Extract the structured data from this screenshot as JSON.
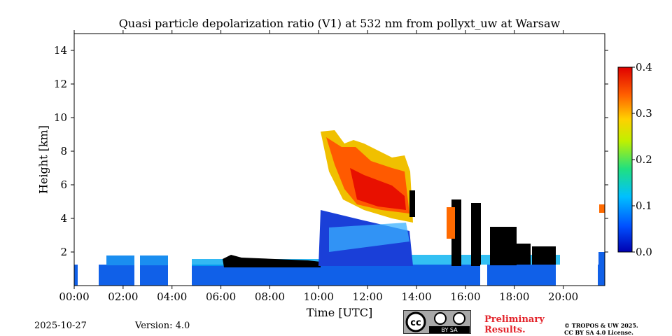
{
  "chart_data": {
    "type": "heatmap",
    "title": "Quasi particle depolarization ratio (V1) at 532 nm from pollyxt_uw at Warsaw",
    "xlabel": "Time [UTC]",
    "ylabel": "Height [km]",
    "x_ticks": [
      "00:00",
      "02:00",
      "04:00",
      "06:00",
      "08:00",
      "10:00",
      "12:00",
      "14:00",
      "16:00",
      "18:00",
      "20:00"
    ],
    "x_tick_hours": [
      0,
      2,
      4,
      6,
      8,
      10,
      12,
      14,
      16,
      18,
      20
    ],
    "xlim_hours": [
      0,
      21.7
    ],
    "y_ticks": [
      "2",
      "4",
      "6",
      "8",
      "10",
      "12",
      "14"
    ],
    "y_tick_values": [
      2,
      4,
      6,
      8,
      10,
      12,
      14
    ],
    "ylim": [
      0,
      15
    ],
    "colorbar": {
      "min": 0.0,
      "max": 0.4,
      "ticks": [
        "0.0",
        "0.1",
        "0.2",
        "0.3",
        "0.4"
      ],
      "tick_values": [
        0.0,
        0.1,
        0.2,
        0.3,
        0.4
      ],
      "colormap": "jet"
    },
    "features": [
      {
        "type": "layer",
        "t_start": 0.0,
        "t_end": 21.7,
        "h_bottom": 0.0,
        "h_top": 1.3,
        "depol": 0.05
      },
      {
        "type": "plume",
        "t_start": 10.2,
        "t_end": 13.8,
        "h_bottom": 4.0,
        "h_top": 9.2,
        "depol": 0.35
      },
      {
        "type": "plume",
        "t_start": 15.3,
        "t_end": 15.7,
        "h_bottom": 2.8,
        "h_top": 5.0,
        "depol": 0.3
      },
      {
        "type": "low-depol",
        "t_start": 9.8,
        "t_end": 14.0,
        "h_bottom": 1.4,
        "h_top": 4.0,
        "depol": 0.08
      }
    ]
  },
  "footer": {
    "date": "2025-10-27",
    "version": "Version: 4.0",
    "preliminary_line1": "Preliminary",
    "preliminary_line2": "Results.",
    "copyright_line1": "© TROPOS & UW 2025.",
    "copyright_line2": "CC BY SA 4.0 License.",
    "license_badge_text": "BY  SA"
  }
}
